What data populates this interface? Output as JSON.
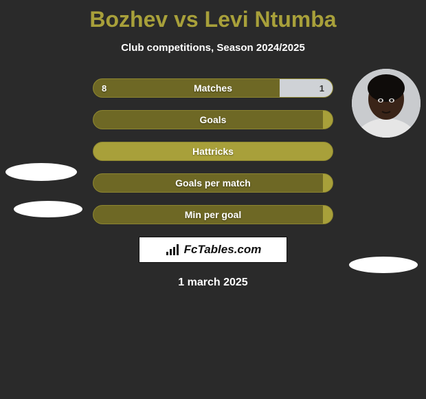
{
  "title": "Bozhev vs Levi Ntumba",
  "subtitle": "Club competitions, Season 2024/2025",
  "date": "1 march 2025",
  "brand": "FcTables.com",
  "colors": {
    "accent": "#a8a03a",
    "accent_dark": "#6e6825",
    "neutral_fill": "#cfd2d6",
    "background": "#2a2a2a",
    "text_light": "#ffffff"
  },
  "bars": [
    {
      "label": "Matches",
      "left": "8",
      "right": "1",
      "left_pct": 78,
      "right_pct": 22
    },
    {
      "label": "Goals",
      "left": "",
      "right": "",
      "left_pct": 96,
      "right_pct": 0
    },
    {
      "label": "Hattricks",
      "left": "",
      "right": "",
      "left_pct": 0,
      "right_pct": 0
    },
    {
      "label": "Goals per match",
      "left": "",
      "right": "",
      "left_pct": 96,
      "right_pct": 0
    },
    {
      "label": "Min per goal",
      "left": "",
      "right": "",
      "left_pct": 96,
      "right_pct": 0
    }
  ],
  "players": {
    "right": {
      "name": "Levi Ntumba",
      "skin": "#3a2418",
      "shirt": "#e6e6e6",
      "bg": "#c9cbce"
    }
  }
}
